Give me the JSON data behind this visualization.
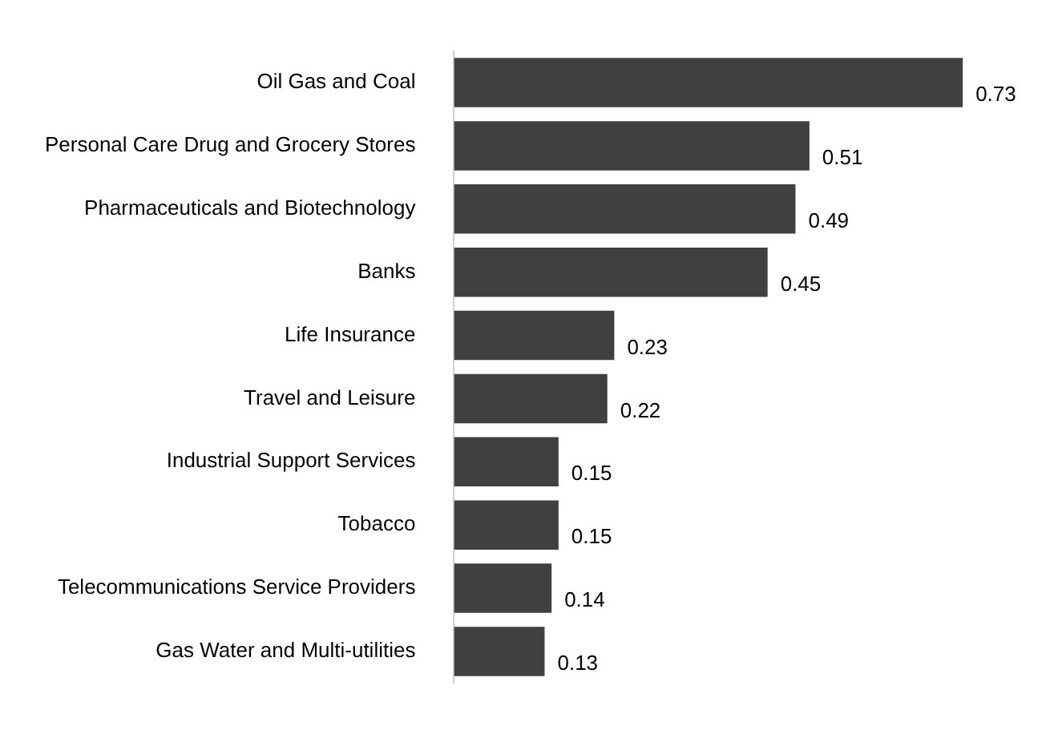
{
  "chart_data": {
    "type": "bar",
    "orientation": "horizontal",
    "categories": [
      "Oil Gas and Coal",
      "Personal Care Drug and Grocery Stores",
      "Pharmaceuticals and Biotechnology",
      "Banks",
      "Life Insurance",
      "Travel and Leisure",
      "Industrial Support Services",
      "Tobacco",
      "Telecommunications Service Providers",
      "Gas Water and Multi-utilities"
    ],
    "values": [
      0.73,
      0.51,
      0.49,
      0.45,
      0.23,
      0.22,
      0.15,
      0.15,
      0.14,
      0.13
    ],
    "color": "#404040",
    "tick_labels": "y",
    "grid": false,
    "legend": false,
    "data_labels": true
  }
}
